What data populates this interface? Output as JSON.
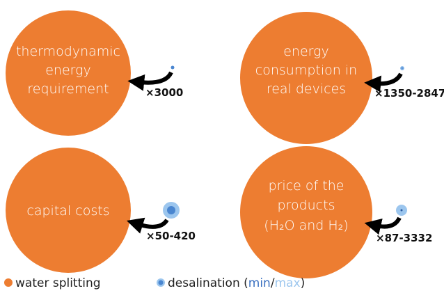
{
  "panels": [
    {
      "label": [
        "thermodynamic",
        "energy",
        "requirement"
      ],
      "ratio": "×3000"
    },
    {
      "label": [
        "energy",
        "consumption in",
        "real devices"
      ],
      "ratio": "×1350-2847"
    },
    {
      "label": [
        "capital costs"
      ],
      "ratio": "×50-420"
    },
    {
      "label": [
        "price of the",
        "products",
        "(H₂O and H₂)"
      ],
      "ratio": "×87-3332"
    }
  ],
  "legend": {
    "water": "water splitting",
    "desal": "desalination (",
    "min": "min",
    "sep": "/",
    "max": "max",
    "close": ")"
  }
}
